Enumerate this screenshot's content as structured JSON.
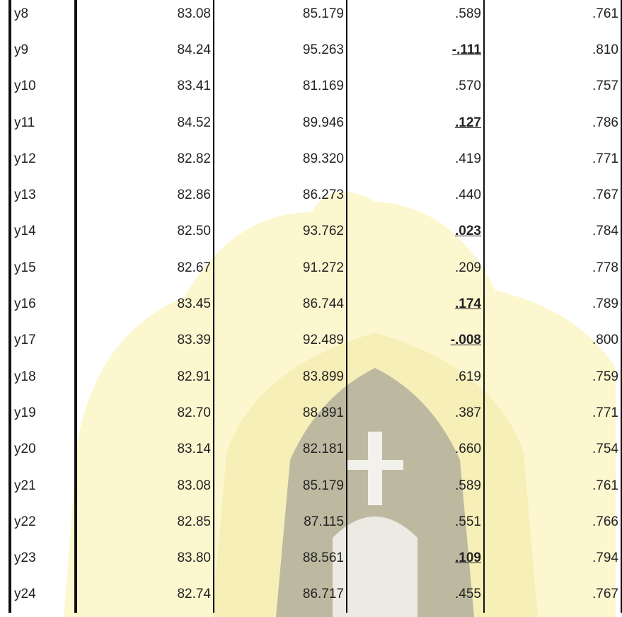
{
  "table": {
    "rows": [
      {
        "cells": [
          "y8",
          "83.08",
          "85.179",
          ".589",
          ".761"
        ],
        "flagged": false
      },
      {
        "cells": [
          "y9",
          "84.24",
          "95.263",
          "-.111",
          ".810"
        ],
        "flagged": true
      },
      {
        "cells": [
          "y10",
          "83.41",
          "81.169",
          ".570",
          ".757"
        ],
        "flagged": false
      },
      {
        "cells": [
          "y11",
          "84.52",
          "89.946",
          ".127",
          ".786"
        ],
        "flagged": true
      },
      {
        "cells": [
          "y12",
          "82.82",
          "89.320",
          ".419",
          ".771"
        ],
        "flagged": false
      },
      {
        "cells": [
          "y13",
          "82.86",
          "86.273",
          ".440",
          ".767"
        ],
        "flagged": false
      },
      {
        "cells": [
          "y14",
          "82.50",
          "93.762",
          ".023",
          ".784"
        ],
        "flagged": true
      },
      {
        "cells": [
          "y15",
          "82.67",
          "91.272",
          ".209",
          ".778"
        ],
        "flagged": false
      },
      {
        "cells": [
          "y16",
          "83.45",
          "86.744",
          ".174",
          ".789"
        ],
        "flagged": true
      },
      {
        "cells": [
          "y17",
          "83.39",
          "92.489",
          "-.008",
          ".800"
        ],
        "flagged": true
      },
      {
        "cells": [
          "y18",
          "82.91",
          "83.899",
          ".619",
          ".759"
        ],
        "flagged": false
      },
      {
        "cells": [
          "y19",
          "82.70",
          "88.891",
          ".387",
          ".771"
        ],
        "flagged": false
      },
      {
        "cells": [
          "y20",
          "83.14",
          "82.181",
          ".660",
          ".754"
        ],
        "flagged": false
      },
      {
        "cells": [
          "y21",
          "83.08",
          "85.179",
          ".589",
          ".761"
        ],
        "flagged": false
      },
      {
        "cells": [
          "y22",
          "82.85",
          "87.115",
          ".551",
          ".766"
        ],
        "flagged": false
      },
      {
        "cells": [
          "y23",
          "83.80",
          "88.561",
          ".109",
          ".794"
        ],
        "flagged": true
      },
      {
        "cells": [
          "y24",
          "82.74",
          "86.717",
          ".455",
          ".767"
        ],
        "flagged": false
      }
    ]
  }
}
